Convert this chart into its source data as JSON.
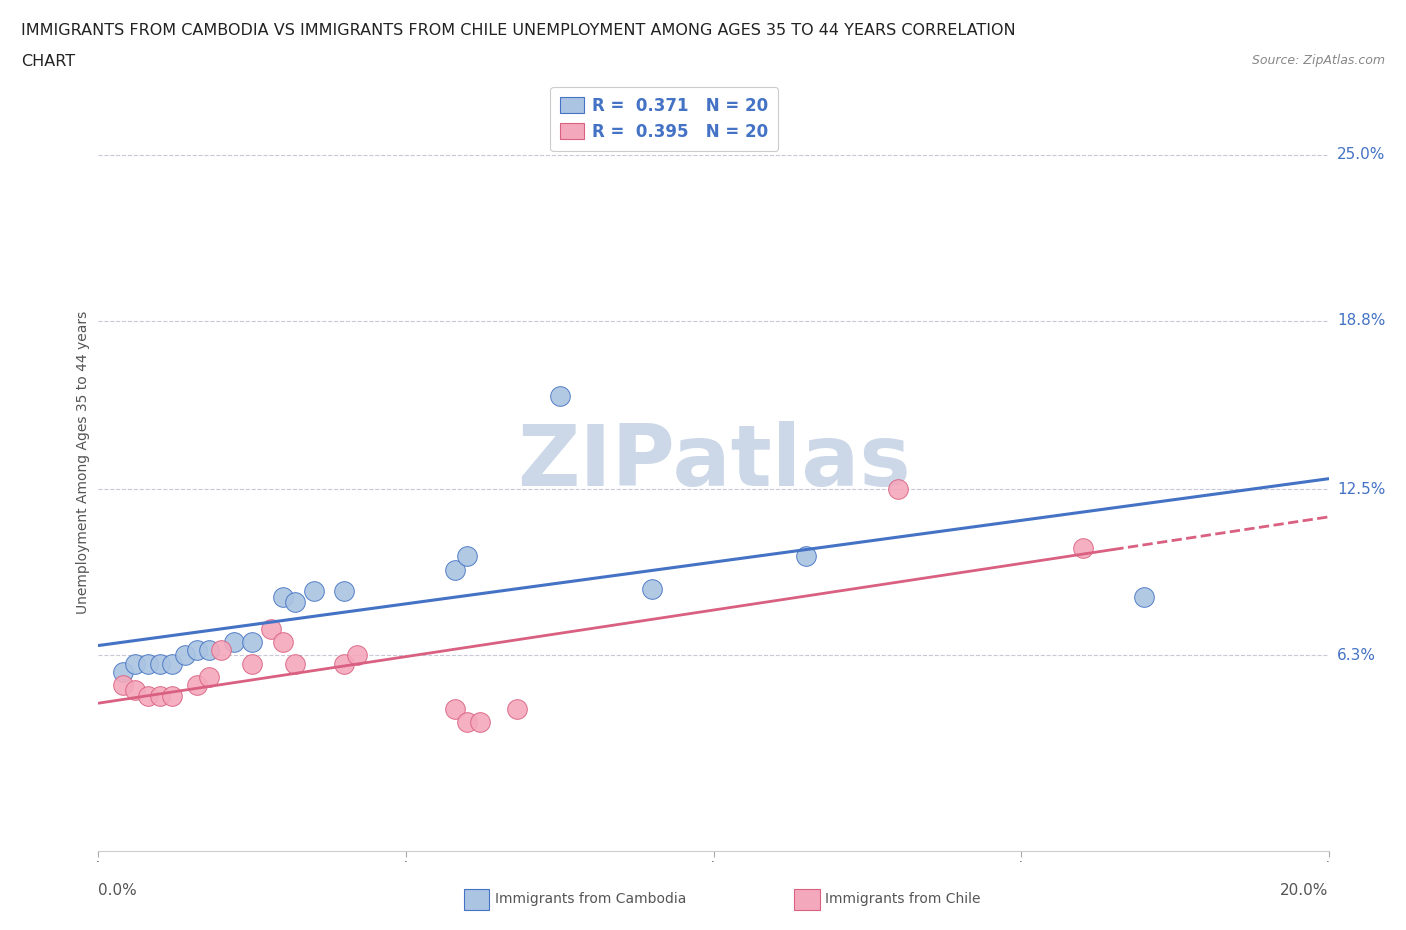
{
  "title_line1": "IMMIGRANTS FROM CAMBODIA VS IMMIGRANTS FROM CHILE UNEMPLOYMENT AMONG AGES 35 TO 44 YEARS CORRELATION",
  "title_line2": "CHART",
  "source_text": "Source: ZipAtlas.com",
  "ylabel": "Unemployment Among Ages 35 to 44 years",
  "yticks": [
    "6.3%",
    "12.5%",
    "18.8%",
    "25.0%"
  ],
  "ytick_vals": [
    0.063,
    0.125,
    0.188,
    0.25
  ],
  "xlim": [
    0.0,
    0.2
  ],
  "ylim": [
    -0.01,
    0.28
  ],
  "cambodia_color": "#aac4e2",
  "chile_color": "#f4a8bc",
  "cambodia_line_color": "#4472c4",
  "chile_line_color": "#d96080",
  "R_cambodia": 0.371,
  "N_cambodia": 20,
  "R_chile": 0.395,
  "N_chile": 20,
  "cambodia_points": [
    [
      0.004,
      0.057
    ],
    [
      0.006,
      0.06
    ],
    [
      0.008,
      0.06
    ],
    [
      0.01,
      0.06
    ],
    [
      0.012,
      0.06
    ],
    [
      0.014,
      0.063
    ],
    [
      0.016,
      0.065
    ],
    [
      0.018,
      0.065
    ],
    [
      0.022,
      0.068
    ],
    [
      0.025,
      0.068
    ],
    [
      0.03,
      0.085
    ],
    [
      0.032,
      0.083
    ],
    [
      0.035,
      0.087
    ],
    [
      0.04,
      0.087
    ],
    [
      0.058,
      0.095
    ],
    [
      0.06,
      0.1
    ],
    [
      0.075,
      0.16
    ],
    [
      0.09,
      0.088
    ],
    [
      0.115,
      0.1
    ],
    [
      0.17,
      0.085
    ]
  ],
  "chile_points": [
    [
      0.004,
      0.052
    ],
    [
      0.006,
      0.05
    ],
    [
      0.008,
      0.048
    ],
    [
      0.01,
      0.048
    ],
    [
      0.012,
      0.048
    ],
    [
      0.016,
      0.052
    ],
    [
      0.018,
      0.055
    ],
    [
      0.02,
      0.065
    ],
    [
      0.025,
      0.06
    ],
    [
      0.028,
      0.073
    ],
    [
      0.03,
      0.068
    ],
    [
      0.032,
      0.06
    ],
    [
      0.04,
      0.06
    ],
    [
      0.042,
      0.063
    ],
    [
      0.058,
      0.043
    ],
    [
      0.06,
      0.038
    ],
    [
      0.062,
      0.038
    ],
    [
      0.068,
      0.043
    ],
    [
      0.13,
      0.125
    ],
    [
      0.16,
      0.103
    ]
  ],
  "background_color": "#ffffff",
  "grid_color": "#c8c8d8",
  "watermark": "ZIPatlas",
  "watermark_color": "#ccd8e8"
}
